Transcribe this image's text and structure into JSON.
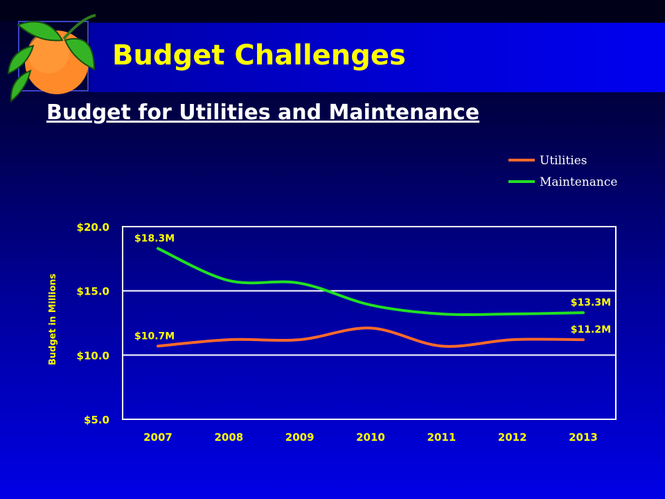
{
  "slide": {
    "title": "Budget Challenges",
    "subtitle": "Budget for Utilities and Maintenance"
  },
  "chart_data": {
    "type": "line",
    "x": [
      "2007",
      "2008",
      "2009",
      "2010",
      "2011",
      "2012",
      "2013"
    ],
    "ylabel": "Budget in Millions",
    "ylim": [
      5,
      20
    ],
    "yticks": [
      "$20.0",
      "$15.0",
      "$10.0",
      "$5.0"
    ],
    "ytick_values": [
      20,
      15,
      10,
      5
    ],
    "grid": true,
    "legend_position": "top-right",
    "series": [
      {
        "name": "Utilities",
        "color": "#ff6a2a",
        "values": [
          10.7,
          11.2,
          11.2,
          12.1,
          10.7,
          11.2,
          11.2
        ],
        "start_label": "$10.7M",
        "end_label": "$11.2M"
      },
      {
        "name": "Maintenance",
        "color": "#22e022",
        "values": [
          18.3,
          15.8,
          15.6,
          13.9,
          13.2,
          13.2,
          13.3
        ],
        "start_label": "$18.3M",
        "end_label": "$13.3M"
      }
    ]
  },
  "colors": {
    "title": "#ffff00",
    "tick_text": "#ffff00",
    "grid": "#ffffff"
  }
}
